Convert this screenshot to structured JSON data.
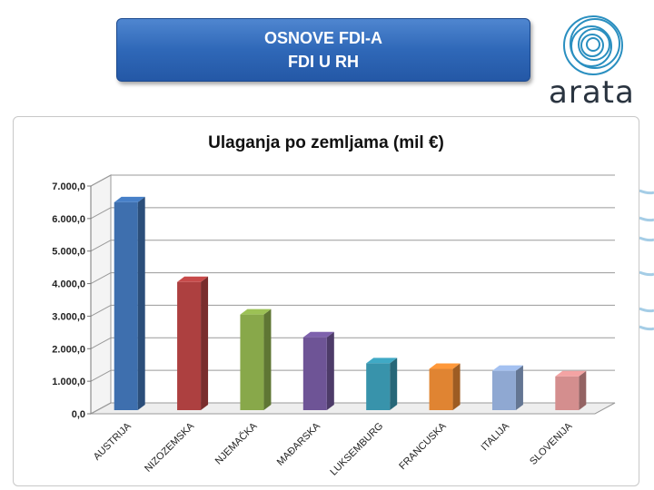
{
  "header": {
    "line1": "OSNOVE FDI-A",
    "line2": "FDI U RH"
  },
  "logo": {
    "text": "arata",
    "color": "#2a8fc0"
  },
  "colors": {
    "bars": [
      "#3e6fae",
      "#ad4040",
      "#88a84a",
      "#6e5496",
      "#3893ab",
      "#e08432",
      "#8fa8d2",
      "#d48e8e"
    ]
  },
  "chart_data": {
    "type": "bar",
    "title": "Ulaganja po zemljama (mil €)",
    "categories": [
      "AUSTRIJA",
      "NIZOZEMSKA",
      "NJEMAČKA",
      "MAĐARSKA",
      "LUKSEMBURG",
      "FRANCUSKA",
      "ITALIJA",
      "SLOVENIJA"
    ],
    "values": [
      6500,
      4050,
      3050,
      2350,
      1550,
      1380,
      1320,
      1150
    ],
    "yticks": [
      "0,0",
      "1.000,0",
      "2.000,0",
      "3.000,0",
      "4.000,0",
      "5.000,0",
      "6.000,0",
      "7.000,0"
    ],
    "ylim": [
      0,
      7000
    ],
    "grid": true,
    "xlabel": "",
    "ylabel": ""
  }
}
